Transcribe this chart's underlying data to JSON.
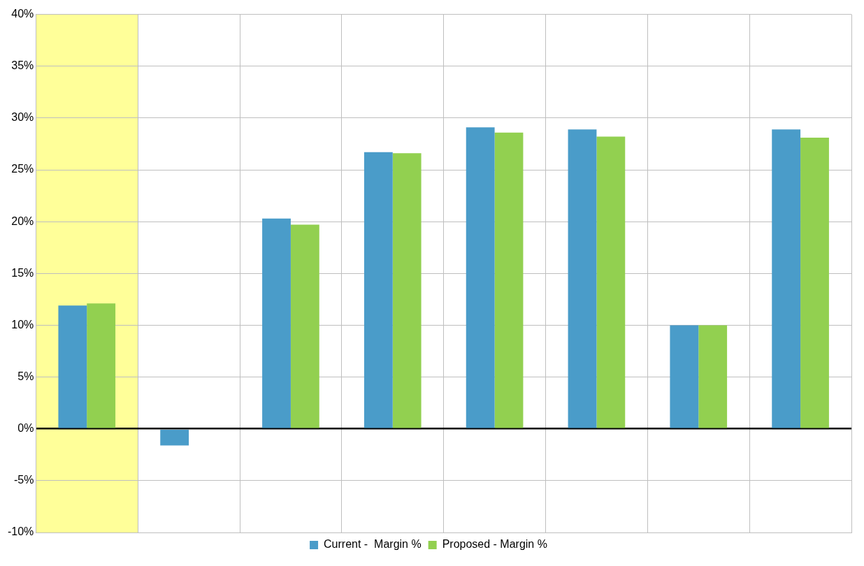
{
  "chart_data": {
    "type": "bar",
    "categories": [
      null,
      null,
      null,
      null,
      null,
      null,
      null,
      null
    ],
    "series": [
      {
        "name": "Current -  Margin %",
        "color": "#4a9cc9",
        "values": [
          11.9,
          -1.6,
          20.3,
          26.7,
          29.1,
          28.9,
          10.0,
          28.9
        ]
      },
      {
        "name": "Proposed - Margin %",
        "color": "#92d050",
        "values": [
          12.1,
          null,
          19.7,
          26.6,
          28.6,
          28.2,
          10.0,
          28.1
        ]
      }
    ],
    "ylim": [
      -10,
      40
    ],
    "yticks": [
      {
        "value": -10,
        "label": "-10%"
      },
      {
        "value": -5,
        "label": "-5%"
      },
      {
        "value": 0,
        "label": "0%"
      },
      {
        "value": 5,
        "label": "5%"
      },
      {
        "value": 10,
        "label": "10%"
      },
      {
        "value": 15,
        "label": "15%"
      },
      {
        "value": 20,
        "label": "20%"
      },
      {
        "value": 25,
        "label": "25%"
      },
      {
        "value": 30,
        "label": "30%"
      },
      {
        "value": 35,
        "label": "35%"
      },
      {
        "value": 40,
        "label": "40%"
      }
    ],
    "grid": true,
    "legend": "bottom",
    "tick_labels": "y"
  }
}
